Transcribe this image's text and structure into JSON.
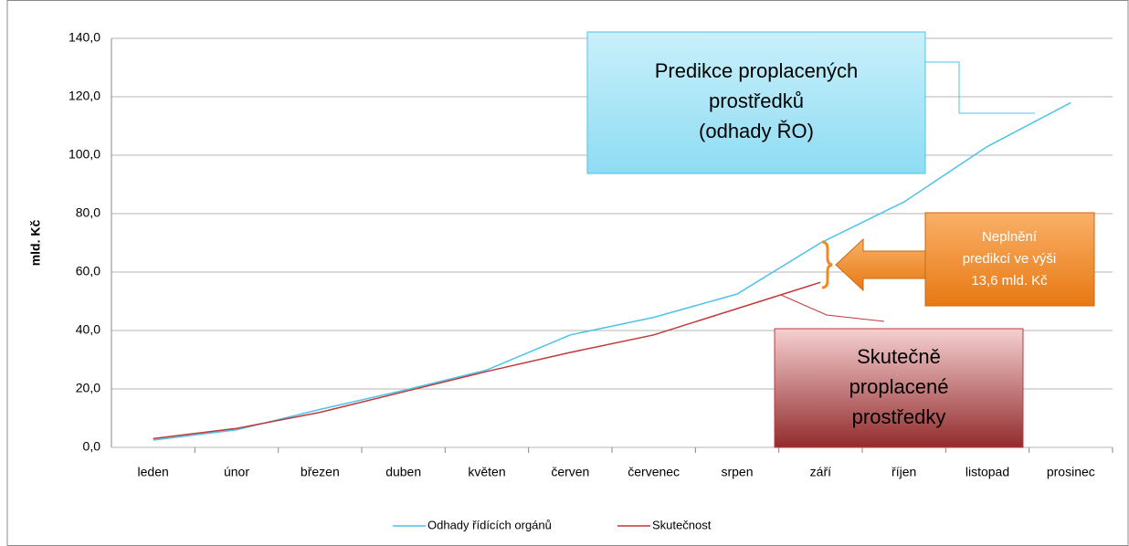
{
  "chart_data": {
    "type": "line",
    "y_label": "mld. Kč",
    "categories": [
      "leden",
      "únor",
      "březen",
      "duben",
      "květen",
      "červen",
      "červenec",
      "srpen",
      "září",
      "říjen",
      "listopad",
      "prosinec"
    ],
    "series": [
      {
        "name": "Odhady řídících orgánů",
        "color": "#4cc3e8",
        "values": [
          2.5,
          6,
          13,
          19.5,
          26.5,
          38.5,
          44.5,
          52.5,
          70,
          84,
          103,
          118
        ]
      },
      {
        "name": "Skutečnost",
        "color": "#c0393b",
        "values": [
          3,
          6.5,
          12,
          19,
          26,
          32.5,
          38.5,
          47.5,
          56.5,
          null,
          null,
          null
        ]
      }
    ],
    "ylim": [
      0,
      140
    ],
    "yticks": [
      {
        "value": 0,
        "label": "0,0"
      },
      {
        "value": 20,
        "label": "20,0"
      },
      {
        "value": 40,
        "label": "40,0"
      },
      {
        "value": 60,
        "label": "60,0"
      },
      {
        "value": 80,
        "label": "80,0"
      },
      {
        "value": 100,
        "label": "100,0"
      },
      {
        "value": 120,
        "label": "120,0"
      },
      {
        "value": 140,
        "label": "140,0"
      }
    ],
    "grid": true,
    "legend": "bottom",
    "annotations": [
      {
        "lines": [
          "Predikce proplacených",
          "prostředků",
          "(odhady ŘO)"
        ]
      },
      {
        "lines": [
          "Neplnění",
          "predikcí ve výši",
          "13,6 mld. Kč"
        ]
      },
      {
        "lines": [
          "Skutečně",
          "proplacené",
          "prostředky"
        ]
      }
    ]
  }
}
